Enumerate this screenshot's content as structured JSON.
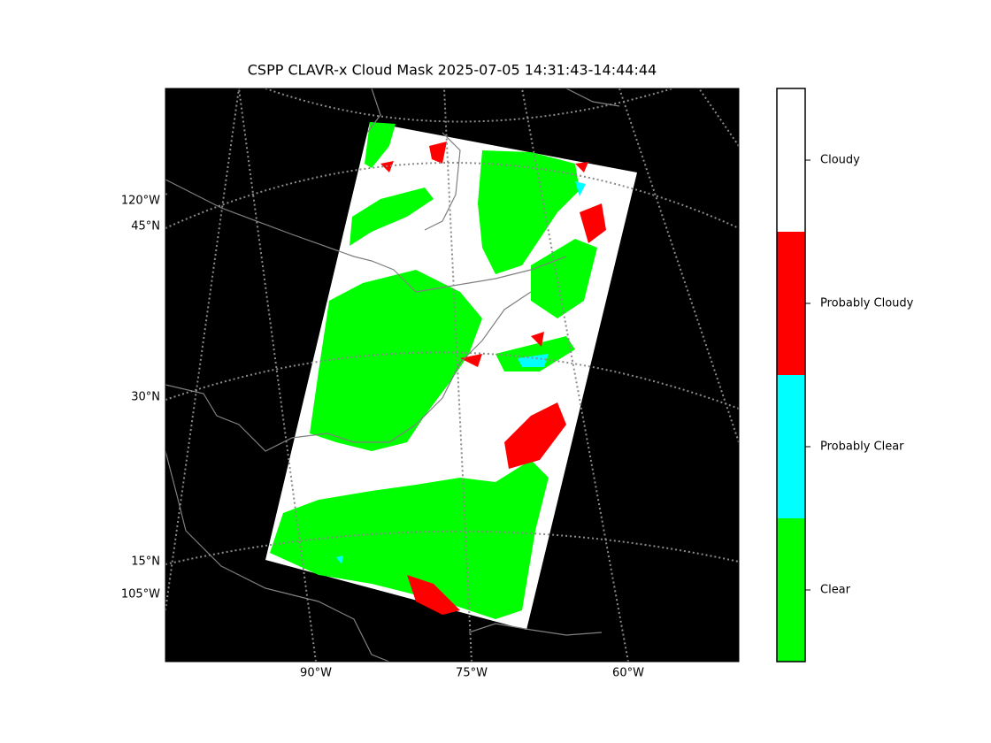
{
  "title": "CSPP CLAVR-x Cloud Mask 2025-07-05 14:31:43-14:44:44",
  "map": {
    "left_labels": [
      "120°W",
      "45°N",
      "30°N",
      "15°N",
      "105°W"
    ],
    "bottom_labels": [
      "90°W",
      "75°W",
      "60°W"
    ]
  },
  "colorbar": {
    "categories": [
      "Clear",
      "Probably Clear",
      "Probably Cloudy",
      "Cloudy"
    ],
    "colors": [
      "#00ff00",
      "#00ffff",
      "#ff0000",
      "#ffffff"
    ]
  }
}
